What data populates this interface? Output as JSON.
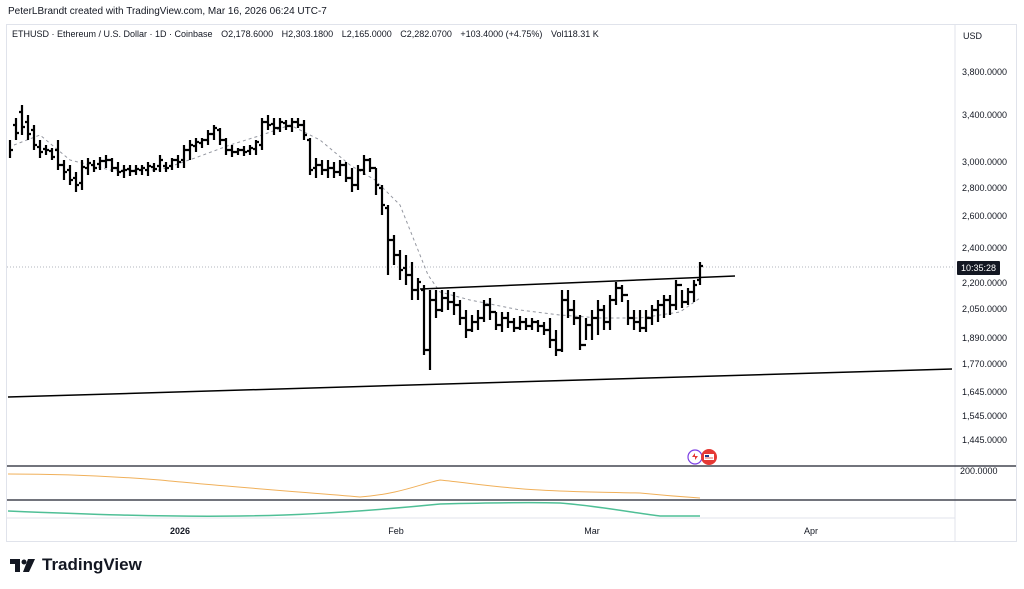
{
  "header": {
    "byline": "PeterLBrandt created with TradingView.com, Mar 16, 2026 06:24 UTC-7"
  },
  "legend": {
    "symbol": "ETHUSD · Ethereum / U.S. Dollar · 1D · Coinbase",
    "open": "O2,178.6000",
    "high": "H2,303.1800",
    "low": "L2,165.0000",
    "close": "C2,282.0700",
    "change": "+103.4000 (+4.75%)",
    "volume": "Vol118.31 K"
  },
  "axis": {
    "currency": "USD",
    "price_labels": [
      "3,800.0000",
      "3,400.0000",
      "3,000.0000",
      "2,800.0000",
      "2,600.0000",
      "2,400.0000",
      "2,200.0000",
      "2,050.0000",
      "1,890.0000",
      "1,770.0000",
      "1,645.0000",
      "1,545.0000",
      "1,445.0000"
    ],
    "countdown": "10:35:28",
    "indicator_value": "200.0000",
    "dates": [
      "2026",
      "Feb",
      "Mar",
      "Apr"
    ]
  },
  "branding": {
    "logo_text": "TradingView"
  },
  "colors": {
    "candle": "#000000",
    "trendline": "#000000",
    "ma_dashed": "#9598a1",
    "volume_line": "#f0b05a",
    "oscillator_line": "#4fbf96",
    "accent_red": "#e53935",
    "accent_purple": "#7b3fe4"
  },
  "chart_data": {
    "type": "ohlc",
    "series": [
      {
        "name": "ETHUSD",
        "open_high_low_close_last": [
          2178.6,
          2303.18,
          2165.0,
          2282.07
        ]
      }
    ],
    "approx_closes": [
      3000,
      3200,
      3300,
      3200,
      3050,
      3050,
      2950,
      2850,
      2950,
      2900,
      3000,
      2950,
      2900,
      2950,
      2950,
      3000,
      3050,
      3200,
      3250,
      3100,
      3050,
      3100,
      3400,
      3350,
      3350,
      3300,
      2950,
      2900,
      2900,
      2950,
      3050,
      2750,
      2600,
      2400,
      2300,
      2200,
      2000,
      1800,
      2150,
      2150,
      2100,
      2050,
      1950,
      2050,
      2100,
      2050,
      2000,
      2000,
      2000,
      1950,
      1900,
      2100,
      2000,
      1950,
      2000,
      2050,
      2150,
      2100,
      2050,
      2000,
      2050,
      2100,
      2200,
      2282
    ],
    "trendlines": [
      {
        "name": "neckline",
        "from": [
          2150
        ],
        "to": [
          2210
        ]
      },
      {
        "name": "lower",
        "from": [
          1610
        ],
        "to": [
          1760
        ]
      }
    ]
  }
}
